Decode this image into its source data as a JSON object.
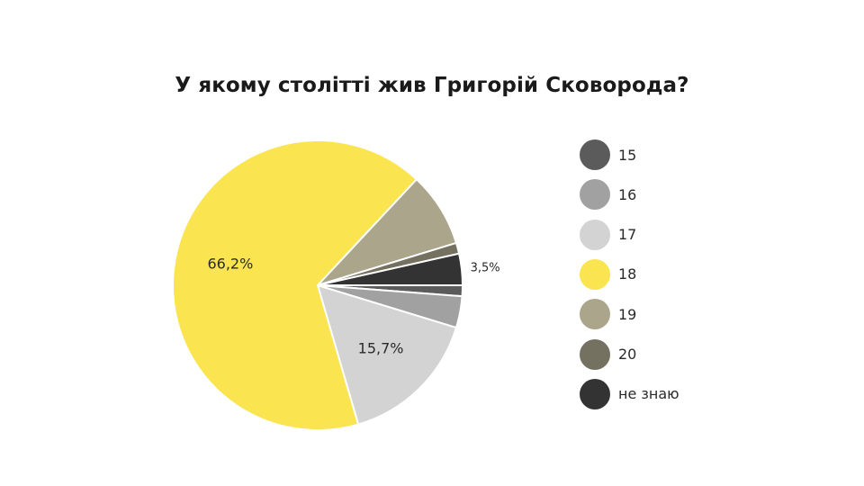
{
  "chart_data": {
    "type": "pie",
    "title": "У якому столітті жив Григорій Сковорода?",
    "categories": [
      "15",
      "16",
      "17",
      "18",
      "19",
      "20",
      "не знаю"
    ],
    "values": [
      1.2,
      3.5,
      15.7,
      66.2,
      8.3,
      1.2,
      3.5
    ],
    "value_unit": "%",
    "colors": [
      "#5b5b5b",
      "#a1a1a1",
      "#d3d3d3",
      "#fae44f",
      "#aba58b",
      "#757161",
      "#333333"
    ],
    "data_labels": [
      {
        "category": "18",
        "text": "66,2%"
      },
      {
        "category": "17",
        "text": "15,7%"
      },
      {
        "category": "не знаю",
        "text": "3,5%"
      }
    ],
    "legend_position": "right",
    "start_angle_deg": 0,
    "direction": "clockwise"
  }
}
